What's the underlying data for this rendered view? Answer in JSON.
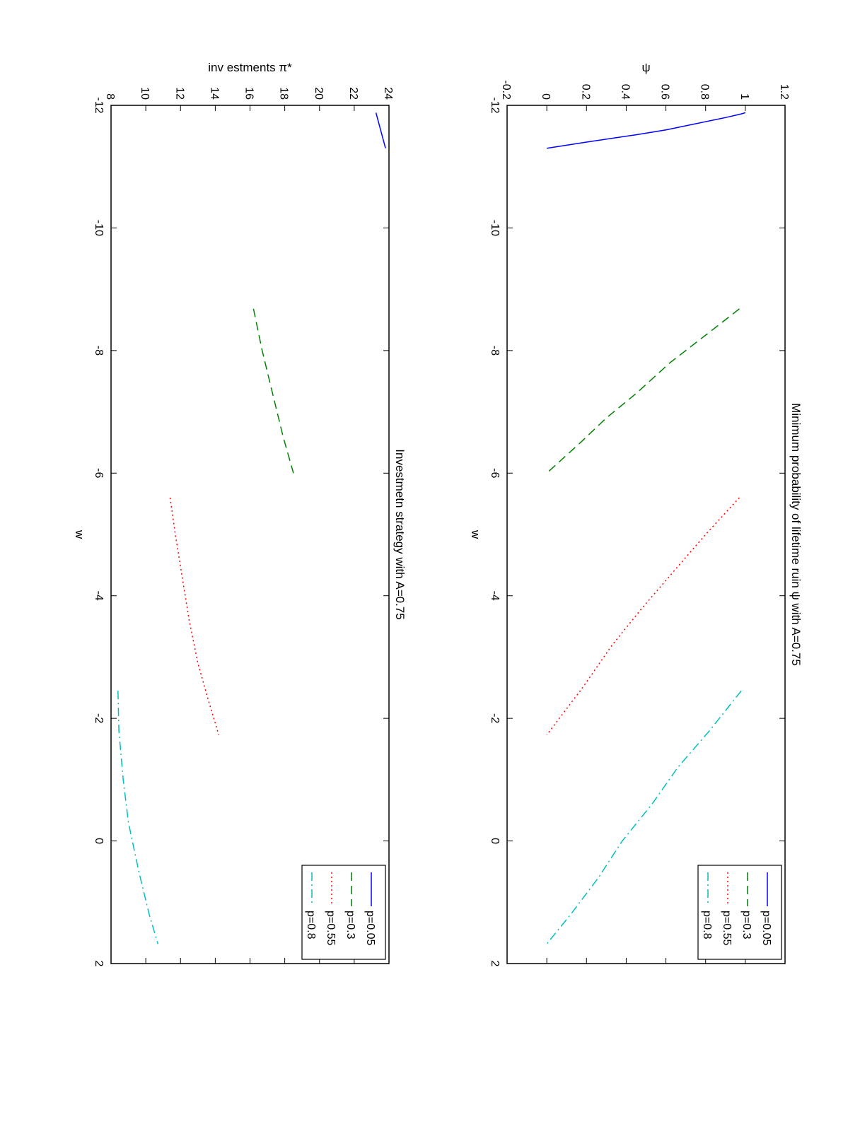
{
  "chart_data": [
    {
      "type": "line",
      "title": "Minimum probability of lifetime ruin ψ with A=0.75",
      "xlabel": "w",
      "ylabel": "ψ",
      "xlim": [
        -12,
        2
      ],
      "ylim": [
        -0.2,
        1.2
      ],
      "xticks": [
        "-12",
        "-10",
        "-8",
        "-6",
        "-4",
        "-2",
        "0",
        "2"
      ],
      "yticks": [
        "-0.2",
        "0",
        "0.2",
        "0.4",
        "0.6",
        "0.8",
        "1",
        "1.2"
      ],
      "legend_position": "top-right",
      "series": [
        {
          "name": "p=0.05",
          "color": "#0000ff",
          "style": "solid",
          "x": [
            -11.88,
            -11.86,
            -11.8,
            -11.6,
            -11.52,
            -11.4,
            -11.3
          ],
          "y": [
            1.0,
            0.98,
            0.9,
            0.6,
            0.45,
            0.2,
            0.0
          ]
        },
        {
          "name": "p=0.3",
          "color": "#008000",
          "style": "dashed",
          "x": [
            -8.68,
            -8.3,
            -7.8,
            -7.3,
            -6.9,
            -6.5,
            -6.0
          ],
          "y": [
            0.97,
            0.82,
            0.62,
            0.45,
            0.3,
            0.17,
            0.0
          ]
        },
        {
          "name": "p=0.55",
          "color": "#ff0000",
          "style": "dotted",
          "x": [
            -5.6,
            -5.0,
            -4.4,
            -3.8,
            -3.2,
            -2.5,
            -1.73
          ],
          "y": [
            0.97,
            0.8,
            0.64,
            0.48,
            0.33,
            0.18,
            0.0
          ]
        },
        {
          "name": "p=0.8",
          "color": "#00bfbf",
          "style": "dashdot",
          "x": [
            -2.45,
            -1.8,
            -1.2,
            -0.6,
            0.0,
            0.6,
            1.2,
            1.68
          ],
          "y": [
            0.98,
            0.82,
            0.66,
            0.53,
            0.38,
            0.26,
            0.12,
            0.0
          ]
        }
      ]
    },
    {
      "type": "line",
      "title": "Investmetn strategy with A=0.75",
      "xlabel": "w",
      "ylabel": "inv estments π*",
      "xlim": [
        -12,
        2
      ],
      "ylim": [
        8,
        24
      ],
      "xticks": [
        "-12",
        "-10",
        "-8",
        "-6",
        "-4",
        "-2",
        "0",
        "2"
      ],
      "yticks": [
        "8",
        "10",
        "12",
        "14",
        "16",
        "18",
        "20",
        "22",
        "24"
      ],
      "legend_position": "top-right",
      "series": [
        {
          "name": "p=0.05",
          "color": "#0000ff",
          "style": "solid",
          "x": [
            -11.88,
            -11.3
          ],
          "y": [
            23.25,
            23.8
          ]
        },
        {
          "name": "p=0.3",
          "color": "#008000",
          "style": "dashed",
          "x": [
            -8.68,
            -8.0,
            -7.3,
            -6.6,
            -6.0
          ],
          "y": [
            16.2,
            16.7,
            17.3,
            17.9,
            18.5
          ]
        },
        {
          "name": "p=0.55",
          "color": "#ff0000",
          "style": "dotted",
          "x": [
            -5.6,
            -5.0,
            -4.3,
            -3.6,
            -2.9,
            -2.3,
            -1.73
          ],
          "y": [
            11.4,
            11.7,
            12.1,
            12.5,
            13.0,
            13.6,
            14.2
          ]
        },
        {
          "name": "p=0.8",
          "color": "#00bfbf",
          "style": "dashdot",
          "x": [
            -2.45,
            -1.8,
            -1.0,
            -0.3,
            0.5,
            1.2,
            1.68
          ],
          "y": [
            8.4,
            8.45,
            8.7,
            9.0,
            9.6,
            10.2,
            10.7
          ]
        }
      ]
    }
  ]
}
